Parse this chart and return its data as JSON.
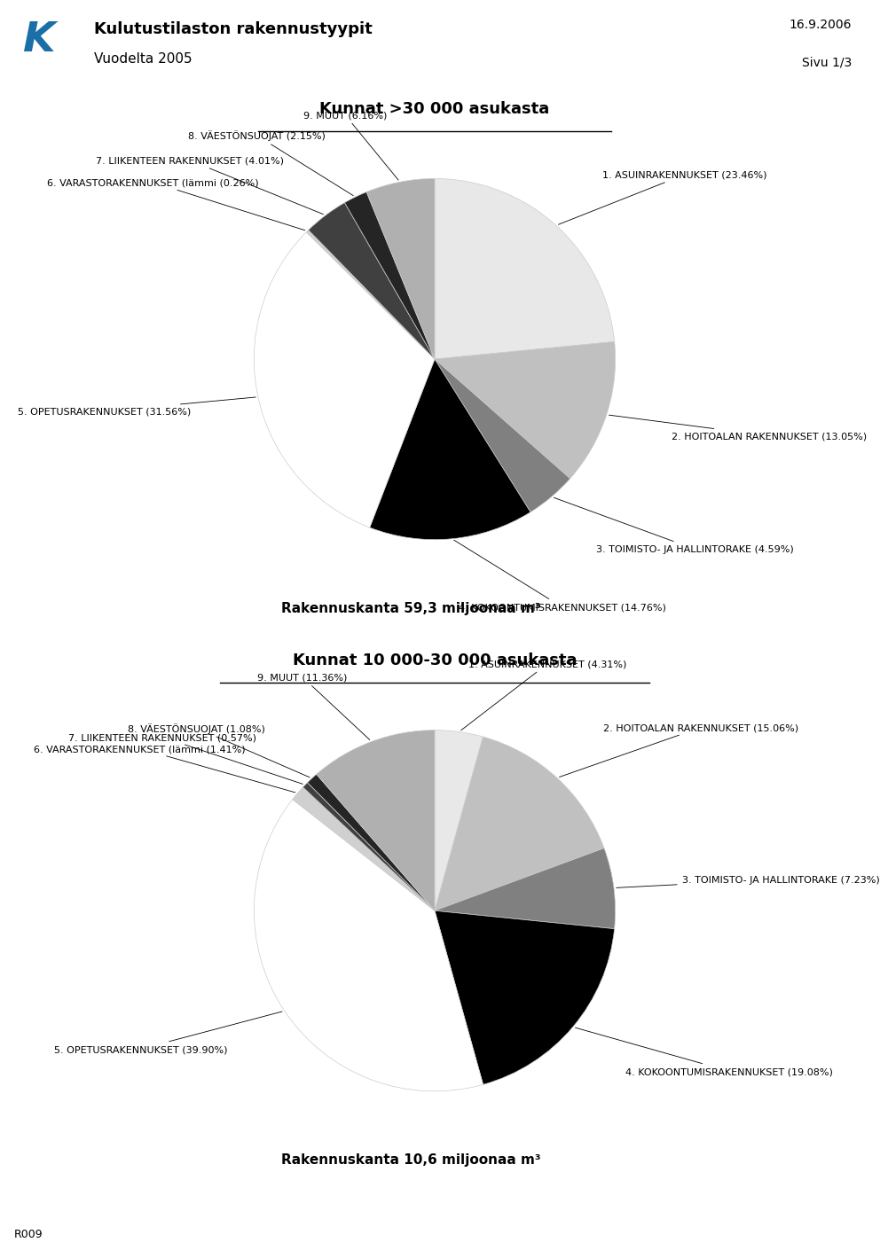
{
  "title_main": "Kulutustilaston rakennustyypit",
  "title_sub": "Vuodelta 2005",
  "date": "16.9.2006",
  "page": "Sivu 1/3",
  "chart1_title": "Kunnat >30 000 asukasta",
  "chart1_subtitle": "Rakennuskanta 59,3 miljoonaa m³",
  "chart1_labels": [
    "1. ASUINRAKENNUKSET (23.46%)",
    "2. HOITOALAN RAKENNUKSET (13.05%)",
    "3. TOIMISTO- JA HALLINTORAKE (4.59%)",
    "4. KOKOONTUMISRAKENNUKSET (14.76%)",
    "5. OPETUSRAKENNUKSET (31.56%)",
    "6. VARASTORAKENNUKSET (lämmi (0.26%)",
    "7. LIIKENTEEN RAKENNUKSET (4.01%)",
    "8. VÄESTÖNSUOJAT (2.15%)",
    "9. MUUT (6.16%)"
  ],
  "chart1_values": [
    23.46,
    13.05,
    4.59,
    14.76,
    31.56,
    0.26,
    4.01,
    2.15,
    6.16
  ],
  "chart1_colors": [
    "#e8e8e8",
    "#c0c0c0",
    "#808080",
    "#000000",
    "#ffffff",
    "#d0d0d0",
    "#404040",
    "#252525",
    "#b0b0b0"
  ],
  "chart2_title": "Kunnat 10 000-30 000 asukasta",
  "chart2_subtitle": "Rakennuskanta 10,6 miljoonaa m³",
  "chart2_labels": [
    "1. ASUINRAKENNUKSET (4.31%)",
    "2. HOITOALAN RAKENNUKSET (15.06%)",
    "3. TOIMISTO- JA HALLINTORAKE (7.23%)",
    "4. KOKOONTUMISRAKENNUKSET (19.08%)",
    "5. OPETUSRAKENNUKSET (39.90%)",
    "6. VARASTORAKENNUKSET (lämmi (1.41%)",
    "7. LIIKENTEEN RAKENNUKSET (0.57%)",
    "8. VÄESTÖNSUOJAT (1.08%)",
    "9. MUUT (11.36%)"
  ],
  "chart2_values": [
    4.31,
    15.06,
    7.23,
    19.08,
    39.9,
    1.41,
    0.57,
    1.08,
    11.36
  ],
  "chart2_colors": [
    "#e8e8e8",
    "#c0c0c0",
    "#808080",
    "#000000",
    "#ffffff",
    "#d0d0d0",
    "#404040",
    "#252525",
    "#b0b0b0"
  ],
  "background_color": "#ffffff",
  "text_color": "#000000",
  "logo_color": "#1a6fa8",
  "footer_text": "R009"
}
